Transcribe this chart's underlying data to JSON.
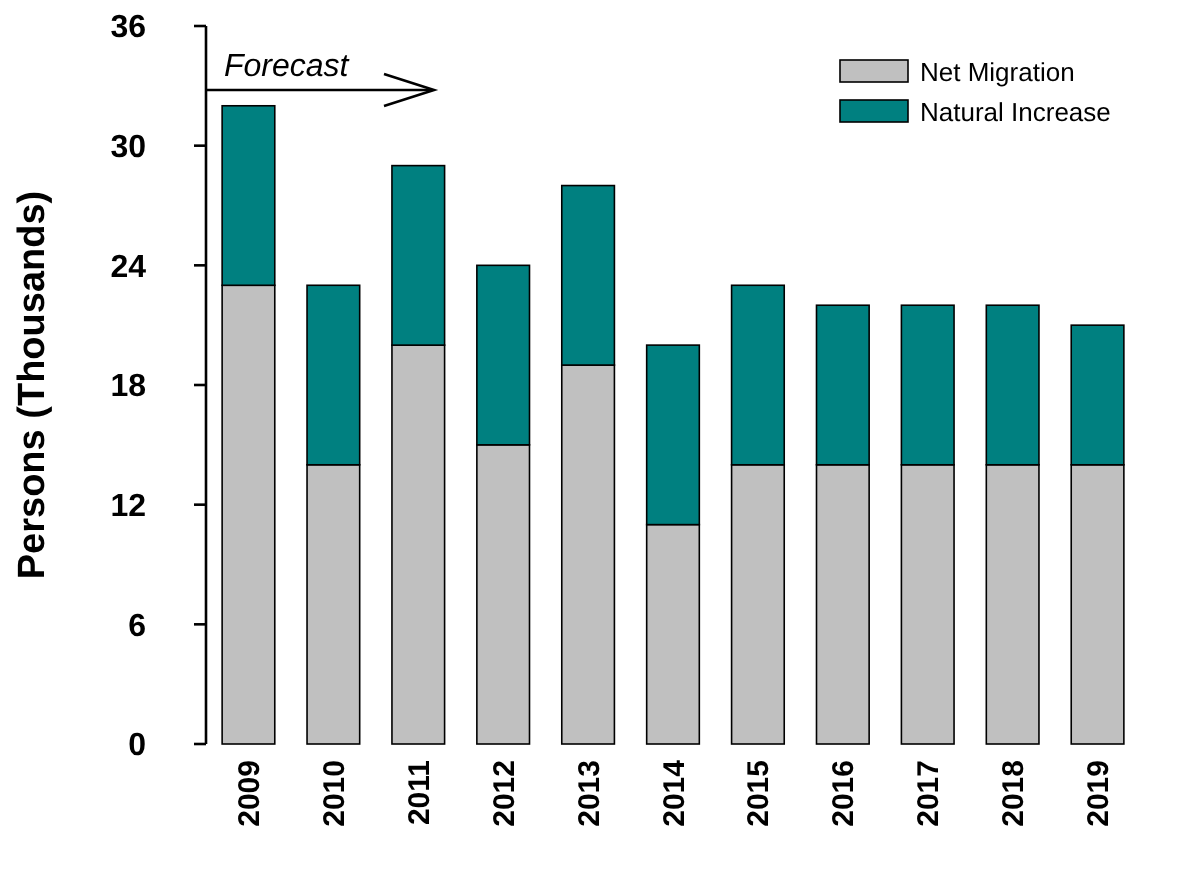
{
  "chart_data": {
    "type": "bar",
    "stacked": true,
    "ylabel": "Persons (Thousands)",
    "categories": [
      "2009",
      "2010",
      "2011",
      "2012",
      "2013",
      "2014",
      "2015",
      "2016",
      "2017",
      "2018",
      "2019"
    ],
    "series": [
      {
        "name": "Net Migration",
        "color": "#c0c0c0",
        "values": [
          23,
          14,
          20,
          15,
          19,
          11,
          14,
          14,
          14,
          14,
          14
        ]
      },
      {
        "name": "Natural Increase",
        "color": "#008080",
        "values": [
          9,
          9,
          9,
          9,
          9,
          9,
          9,
          8,
          8,
          8,
          7
        ]
      }
    ],
    "ylim": [
      0,
      36
    ],
    "yticks": [
      0,
      6,
      12,
      18,
      24,
      30,
      36
    ],
    "grid": false,
    "legend": "top right",
    "annotations": [
      "Forecast"
    ]
  }
}
